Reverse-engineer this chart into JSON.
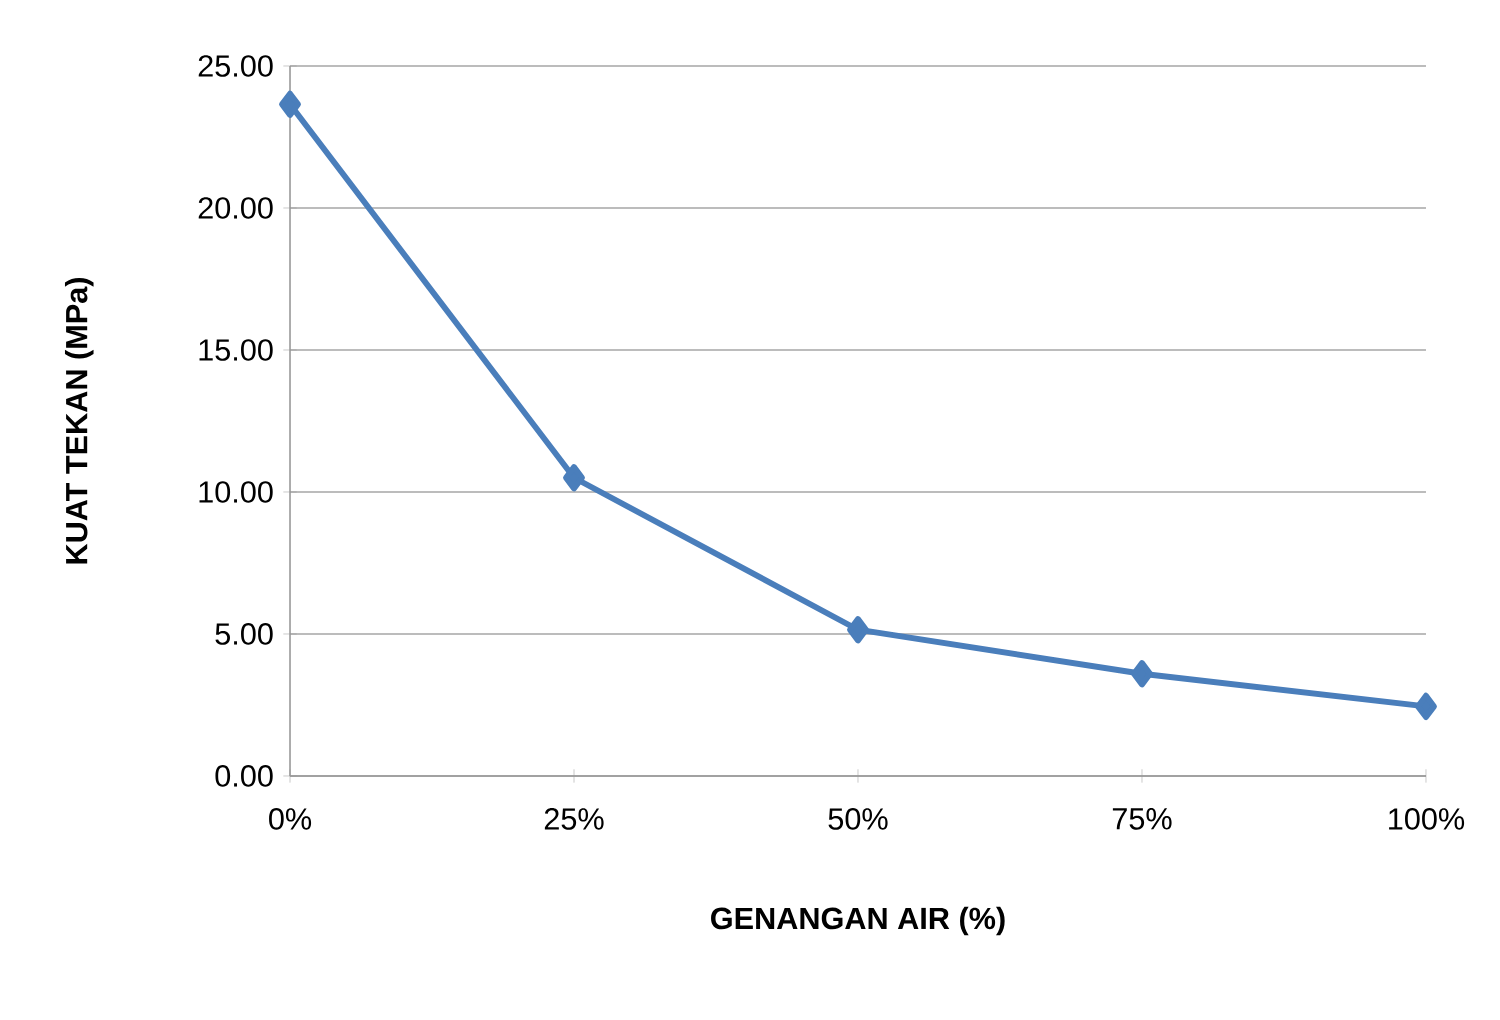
{
  "chart_data": {
    "type": "line",
    "xlabel": "GENANGAN AIR (%)",
    "ylabel": "KUAT TEKAN  (MPa)",
    "categories": [
      "0%",
      "25%",
      "50%",
      "75%",
      "100%"
    ],
    "series": [
      {
        "color": "#4a7ebb",
        "values": [
          23.65,
          10.5,
          5.15,
          3.6,
          2.45
        ]
      }
    ],
    "ylim": [
      0,
      25
    ],
    "yticks": [
      {
        "value": 0,
        "label": "0.00"
      },
      {
        "value": 5,
        "label": "5.00"
      },
      {
        "value": 10,
        "label": "10.00"
      },
      {
        "value": 15,
        "label": "15.00"
      },
      {
        "value": 20,
        "label": "20.00"
      },
      {
        "value": 25,
        "label": "25.00"
      }
    ],
    "grid": "y",
    "marker": "diamond"
  }
}
